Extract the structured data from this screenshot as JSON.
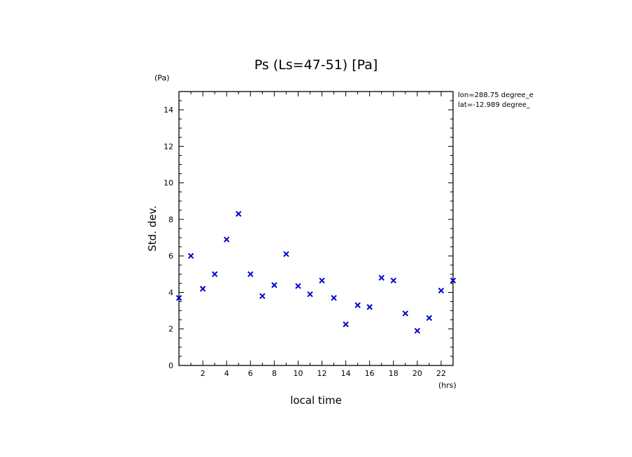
{
  "chart_data": {
    "type": "scatter",
    "title": "Ps (Ls=47-51) [Pa]",
    "xlabel": "local time",
    "ylabel": "Std. dev.",
    "x_unit": "(hrs)",
    "y_unit": "(Pa)",
    "xlim": [
      0,
      23
    ],
    "ylim": [
      0,
      15
    ],
    "x_ticks": [
      2,
      4,
      6,
      8,
      10,
      12,
      14,
      16,
      18,
      20,
      22
    ],
    "y_ticks": [
      0,
      2,
      4,
      6,
      8,
      10,
      12,
      14
    ],
    "grid": false,
    "legend": "none",
    "marker": "x",
    "color": "#0000cc",
    "annotations": [
      "lon=288.75 degree_e",
      "lat=-12.989 degree_"
    ],
    "series": [
      {
        "x": [
          0,
          1,
          2,
          3,
          4,
          5,
          6,
          7,
          8,
          9,
          10,
          11,
          12,
          13,
          14,
          15,
          16,
          17,
          18,
          19,
          20,
          21,
          22,
          23
        ],
        "values": [
          3.7,
          6.0,
          4.2,
          5.0,
          6.9,
          8.3,
          5.0,
          3.8,
          4.4,
          6.1,
          4.35,
          3.9,
          4.65,
          3.7,
          2.25,
          3.3,
          3.2,
          4.8,
          4.65,
          2.85,
          1.9,
          2.6,
          4.1,
          4.65
        ]
      }
    ]
  }
}
